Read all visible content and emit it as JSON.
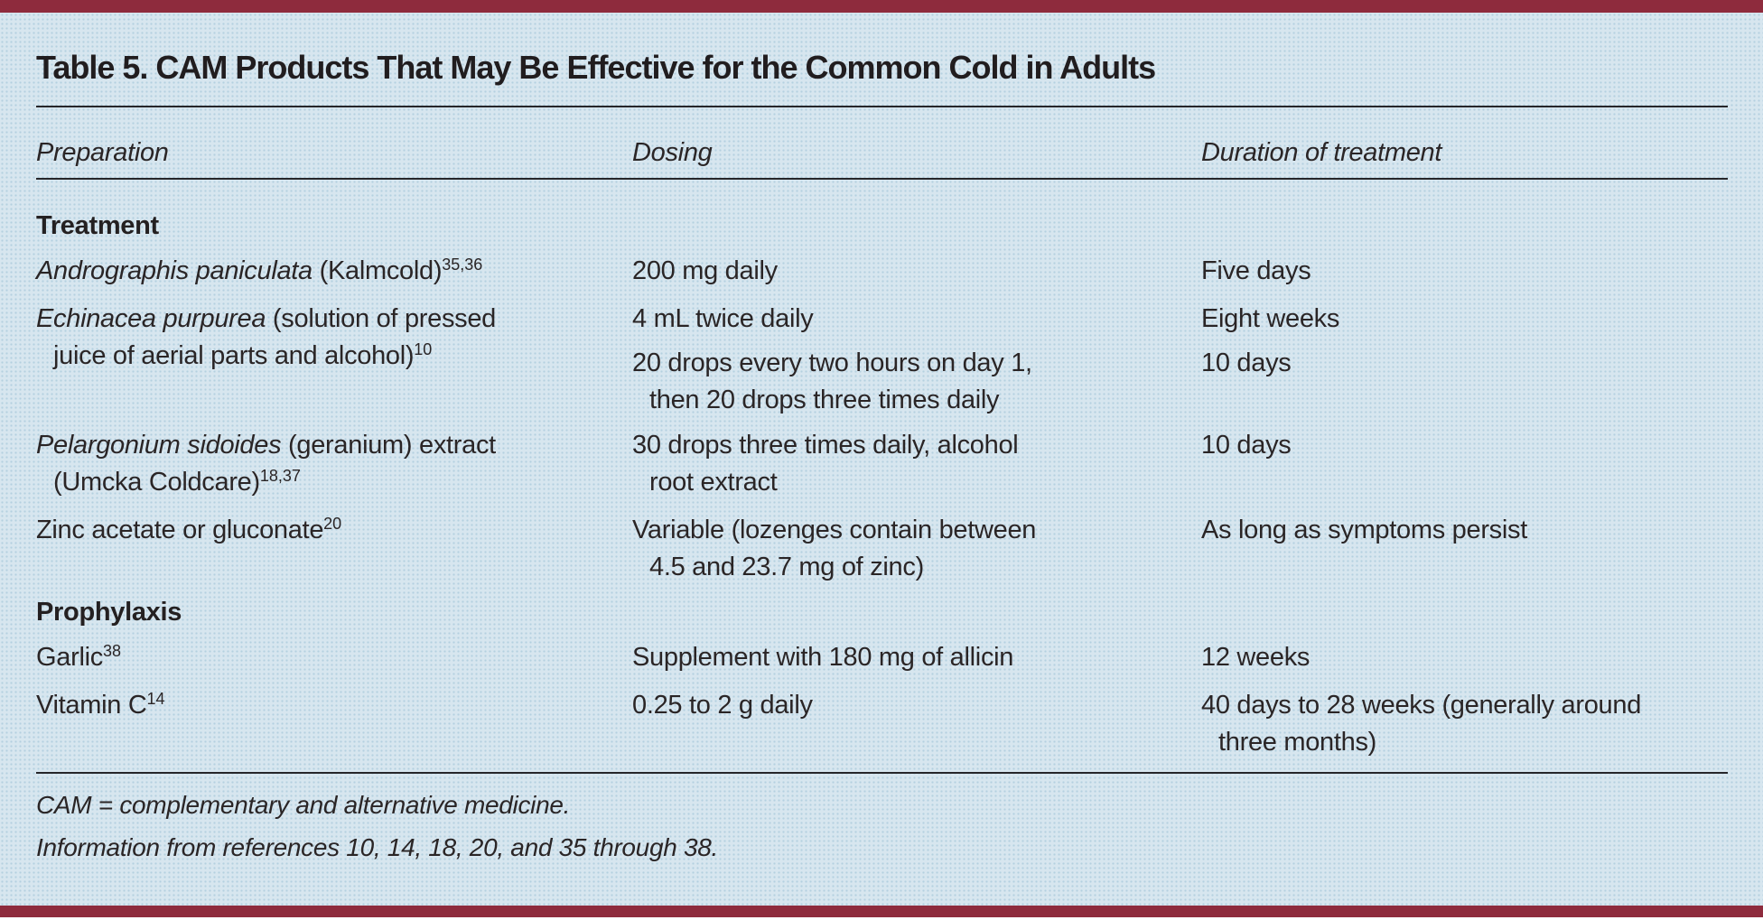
{
  "colors": {
    "accent_bar": "#8e2b3d",
    "page_background": "#d7e6ef",
    "text": "#2a2526",
    "rule": "#26262a"
  },
  "table": {
    "title": "Table 5. CAM Products That May Be Effective for the Common Cold in Adults",
    "columns": [
      "Preparation",
      "Dosing",
      "Duration of treatment"
    ],
    "sections": [
      {
        "heading": "Treatment",
        "rows": [
          {
            "preparation": [
              [
                [
                  {
                    "t": "Andrographis paniculata",
                    "i": true
                  },
                  {
                    "t": " (Kalmcold)"
                  },
                  {
                    "t": "35,36",
                    "s": true
                  }
                ]
              ]
            ],
            "dosing": [
              [
                [
                  {
                    "t": "200 mg daily"
                  }
                ]
              ]
            ],
            "duration": [
              [
                [
                  {
                    "t": "Five days"
                  }
                ]
              ]
            ]
          },
          {
            "preparation": [
              [
                [
                  {
                    "t": "Echinacea purpurea",
                    "i": true
                  },
                  {
                    "t": " (solution of pressed"
                  }
                ],
                [
                  {
                    "t": "juice of aerial parts and alcohol)"
                  },
                  {
                    "t": "10",
                    "s": true
                  }
                ]
              ]
            ],
            "dosing": [
              [
                [
                  {
                    "t": "4 mL twice daily"
                  }
                ]
              ],
              [
                [
                  {
                    "t": "20 drops every two hours on day 1,"
                  }
                ],
                [
                  {
                    "t": "then 20 drops three times daily"
                  }
                ]
              ]
            ],
            "duration": [
              [
                [
                  {
                    "t": "Eight weeks"
                  }
                ]
              ],
              [
                [
                  {
                    "t": "10 days"
                  }
                ]
              ]
            ]
          },
          {
            "preparation": [
              [
                [
                  {
                    "t": "Pelargonium sidoides",
                    "i": true
                  },
                  {
                    "t": " (geranium) extract"
                  }
                ],
                [
                  {
                    "t": "(Umcka Coldcare)"
                  },
                  {
                    "t": "18,37",
                    "s": true
                  }
                ]
              ]
            ],
            "dosing": [
              [
                [
                  {
                    "t": "30 drops three times daily, alcohol"
                  }
                ],
                [
                  {
                    "t": "root extract"
                  }
                ]
              ]
            ],
            "duration": [
              [
                [
                  {
                    "t": "10 days"
                  }
                ]
              ]
            ]
          },
          {
            "preparation": [
              [
                [
                  {
                    "t": "Zinc acetate or gluconate"
                  },
                  {
                    "t": "20",
                    "s": true
                  }
                ]
              ]
            ],
            "dosing": [
              [
                [
                  {
                    "t": "Variable (lozenges contain between"
                  }
                ],
                [
                  {
                    "t": "4.5 and 23.7 mg of zinc)"
                  }
                ]
              ]
            ],
            "duration": [
              [
                [
                  {
                    "t": "As long as symptoms persist"
                  }
                ]
              ]
            ]
          }
        ]
      },
      {
        "heading": "Prophylaxis",
        "rows": [
          {
            "preparation": [
              [
                [
                  {
                    "t": "Garlic"
                  },
                  {
                    "t": "38",
                    "s": true
                  }
                ]
              ]
            ],
            "dosing": [
              [
                [
                  {
                    "t": "Supplement with 180 mg of allicin"
                  }
                ]
              ]
            ],
            "duration": [
              [
                [
                  {
                    "t": "12 weeks"
                  }
                ]
              ]
            ]
          },
          {
            "preparation": [
              [
                [
                  {
                    "t": "Vitamin C"
                  },
                  {
                    "t": "14",
                    "s": true
                  }
                ]
              ]
            ],
            "dosing": [
              [
                [
                  {
                    "t": "0.25 to 2 g daily"
                  }
                ]
              ]
            ],
            "duration": [
              [
                [
                  {
                    "t": "40 days to 28 weeks (generally around"
                  }
                ],
                [
                  {
                    "t": "three months)"
                  }
                ]
              ]
            ]
          }
        ]
      }
    ]
  },
  "footnotes": [
    "CAM = complementary and alternative medicine.",
    "Information from references 10, 14, 18, 20, and 35 through 38."
  ]
}
